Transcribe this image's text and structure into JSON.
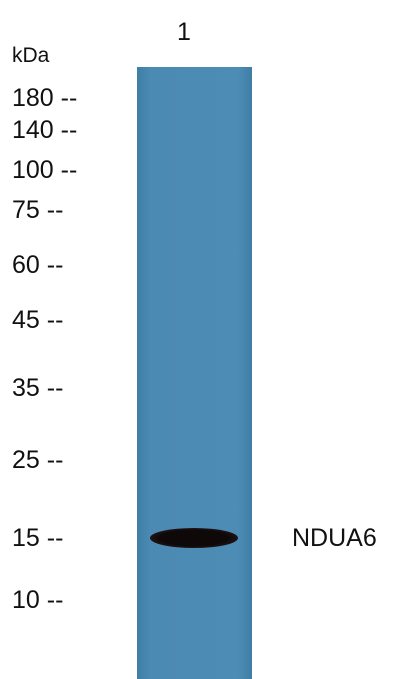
{
  "lane_label": "1",
  "unit_label": "kDa",
  "markers": [
    "180 --",
    "140 --",
    "100 --",
    "75 --",
    "60 --",
    "45 --",
    "35 --",
    "25 --",
    "15 --",
    "10 --"
  ],
  "band_label": "NDUA6"
}
